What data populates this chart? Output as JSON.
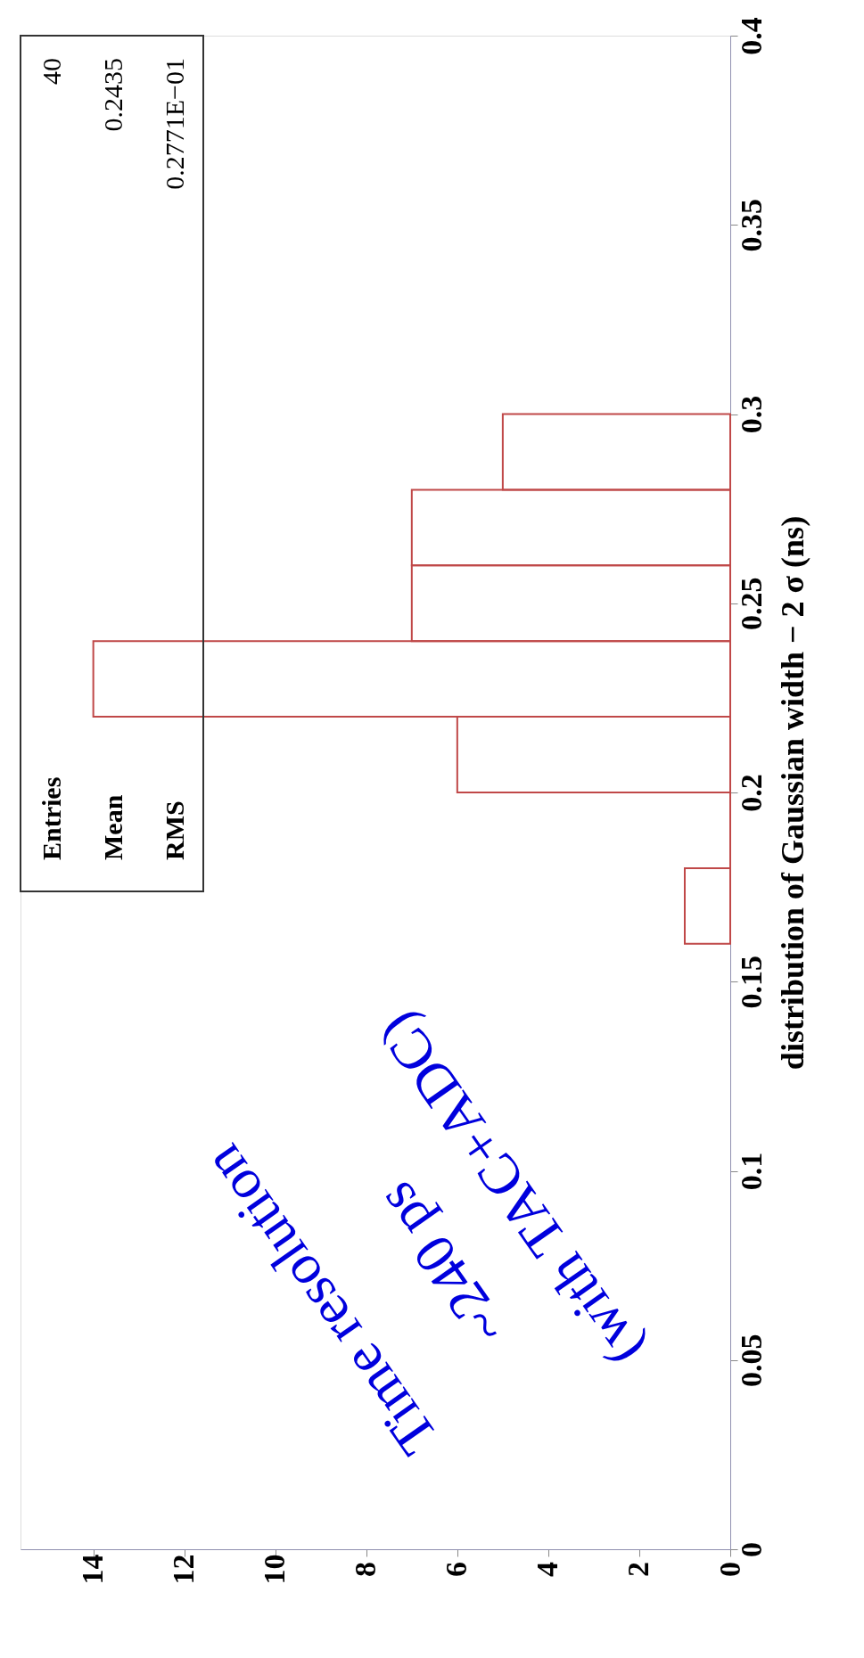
{
  "chart_data": {
    "type": "histogram",
    "orientation": "horizontal",
    "bins": [
      0.16,
      0.18,
      0.2,
      0.22,
      0.24,
      0.26,
      0.28,
      0.3
    ],
    "values": [
      1,
      0,
      6,
      14,
      7,
      7,
      5
    ],
    "color": "#c04848",
    "xlim": [
      15.6,
      0
    ],
    "xticks": [
      14,
      12,
      10,
      8,
      6,
      4,
      2,
      0
    ],
    "ylim": [
      0,
      0.4
    ],
    "yticks": [
      0,
      0.05,
      0.1,
      0.15,
      0.2,
      0.25,
      0.3,
      0.35,
      0.4
    ],
    "ylabel": "distribution of Gaussian width − 2   σ (ns)",
    "grid": false,
    "annotations": [
      "Time resolution",
      "~240 ps",
      "(with TAC+ADC)",
      "Entries",
      "40",
      "Mean",
      "0.2435",
      "RMS",
      "0.2771E−01"
    ]
  }
}
